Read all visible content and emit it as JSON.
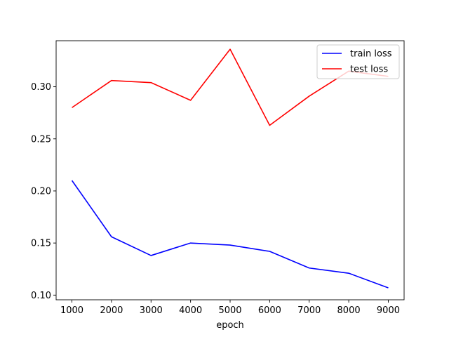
{
  "chart_data": {
    "type": "line",
    "title": "",
    "xlabel": "epoch",
    "ylabel": "",
    "x": [
      1000,
      2000,
      3000,
      4000,
      5000,
      6000,
      7000,
      8000,
      9000
    ],
    "xticks": [
      1000,
      2000,
      3000,
      4000,
      5000,
      6000,
      7000,
      8000,
      9000
    ],
    "yticks": [
      0.1,
      0.15,
      0.2,
      0.25,
      0.3
    ],
    "ytick_labels": [
      "0.10",
      "0.15",
      "0.20",
      "0.25",
      "0.30"
    ],
    "xlim": [
      600,
      9400
    ],
    "ylim": [
      0.0955,
      0.3442
    ],
    "grid": false,
    "legend_position": "top-right",
    "series": [
      {
        "name": "train loss",
        "color": "#0000ff",
        "values": [
          0.21,
          0.156,
          0.138,
          0.15,
          0.148,
          0.142,
          0.126,
          0.121,
          0.107
        ]
      },
      {
        "name": "test loss",
        "color": "#ff0000",
        "values": [
          0.28,
          0.306,
          0.304,
          0.287,
          0.336,
          0.263,
          0.291,
          0.315,
          0.31
        ]
      }
    ]
  }
}
